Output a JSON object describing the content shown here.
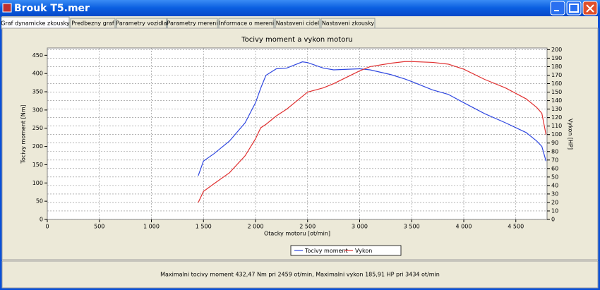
{
  "window": {
    "title": "Brouk T5.mer"
  },
  "tabs": [
    "Graf dynamicke zkousky",
    "Predbezny graf",
    "Parametry vozidla",
    "Parametry mereni",
    "Informace o mereni",
    "Nastaveni cidel",
    "Nastaveni zkousky"
  ],
  "chart_data": {
    "type": "line",
    "title": "Tocivy moment a vykon motoru",
    "x_label": "Otacky motoru [ot/min]",
    "y_label": "Tocivy moment [Nm]",
    "y2_label": "Vykon [HP]",
    "x": [
      1450,
      1500,
      1600,
      1750,
      1900,
      2000,
      2050,
      2100,
      2200,
      2300,
      2450,
      2500,
      2650,
      2750,
      3000,
      3100,
      3300,
      3434,
      3500,
      3700,
      3850,
      4000,
      4200,
      4400,
      4600,
      4700,
      4750,
      4790
    ],
    "series": [
      {
        "name": "Tocivy moment",
        "color": "#3048e0",
        "values": [
          120,
          160,
          180,
          215,
          265,
          320,
          360,
          395,
          413,
          415,
          432,
          430,
          415,
          410,
          413,
          410,
          397,
          385,
          378,
          355,
          343,
          320,
          290,
          265,
          238,
          215,
          200,
          160
        ]
      },
      {
        "name": "Vykon",
        "color": "#e03030",
        "axis": "y2",
        "values": [
          20,
          33,
          42,
          55,
          75,
          95,
          108,
          112,
          122,
          130,
          145,
          150,
          155,
          160,
          175,
          180,
          184,
          186,
          186,
          185,
          183,
          177,
          165,
          155,
          142,
          132,
          125,
          100
        ]
      }
    ],
    "xlim": [
      0,
      4800
    ],
    "xticks": [
      0,
      500,
      {
        "value": 1000,
        "label": "1 000"
      },
      {
        "value": 1500,
        "label": "1 500"
      },
      {
        "value": 2000,
        "label": "2 000"
      },
      {
        "value": 2500,
        "label": "2 500"
      },
      {
        "value": 3000,
        "label": "3 000"
      },
      {
        "value": 3500,
        "label": "3 500"
      },
      {
        "value": 4000,
        "label": "4 000"
      },
      {
        "value": 4500,
        "label": "4 500"
      }
    ],
    "ylim": [
      0,
      470
    ],
    "yticks": [
      0,
      50,
      100,
      150,
      200,
      250,
      300,
      350,
      400,
      450
    ],
    "y2lim": [
      0,
      202
    ],
    "y2ticks": [
      0,
      10,
      20,
      30,
      40,
      50,
      60,
      70,
      80,
      90,
      100,
      110,
      120,
      130,
      140,
      150,
      160,
      170,
      180,
      190,
      200
    ],
    "grid": true,
    "legend": "bottom"
  },
  "status": "Maximalni tocivy moment 432,47 Nm pri 2459 ot/min,  Maximalni vykon 185,91 HP pri 3434 ot/min"
}
